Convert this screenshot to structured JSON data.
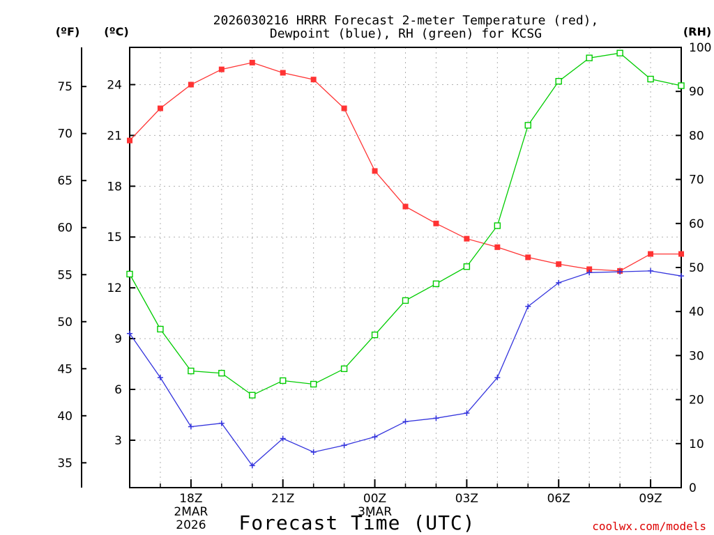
{
  "chart_data": {
    "type": "line",
    "title_line1": "2026030216 HRRR Forecast 2-meter Temperature (red),",
    "title_line2": "Dewpoint (blue), RH (green) for KCSG",
    "xlabel": "Forecast Time (UTC)",
    "credit": "coolwx.com/models",
    "units": {
      "fahrenheit": "(ºF)",
      "celsius": "(ºC)",
      "rh": "(RH)"
    },
    "x_hours": [
      16,
      17,
      18,
      19,
      20,
      21,
      22,
      23,
      24,
      25,
      26,
      27,
      28,
      29,
      30,
      31,
      32,
      33,
      34
    ],
    "x_ticks": [
      {
        "hour": 18,
        "lines": [
          "18Z",
          "2MAR",
          "2026"
        ]
      },
      {
        "hour": 21,
        "lines": [
          "21Z"
        ]
      },
      {
        "hour": 24,
        "lines": [
          "00Z",
          "3MAR"
        ]
      },
      {
        "hour": 27,
        "lines": [
          "03Z"
        ]
      },
      {
        "hour": 30,
        "lines": [
          "06Z"
        ]
      },
      {
        "hour": 33,
        "lines": [
          "09Z"
        ]
      }
    ],
    "xlim": [
      16,
      34
    ],
    "ylim_c": [
      0.2,
      26.2
    ],
    "ylim_rh": [
      0,
      100
    ],
    "c_ticks": [
      3,
      6,
      9,
      12,
      15,
      18,
      21,
      24
    ],
    "f_ticks": [
      35,
      40,
      45,
      50,
      55,
      60,
      65,
      70,
      75
    ],
    "rh_ticks": [
      0,
      10,
      20,
      30,
      40,
      50,
      60,
      70,
      80,
      90,
      100
    ],
    "series": [
      {
        "name": "Temperature",
        "unit": "C",
        "color": "#ff3333",
        "marker": "filled-square",
        "values": [
          20.7,
          22.6,
          24.0,
          24.9,
          25.3,
          24.7,
          24.3,
          22.6,
          18.9,
          16.8,
          15.8,
          14.9,
          14.4,
          13.8,
          13.4,
          13.1,
          13.0,
          14.0,
          14.0
        ]
      },
      {
        "name": "Dewpoint",
        "unit": "C",
        "color": "#3333dd",
        "marker": "plus",
        "values": [
          9.3,
          6.7,
          3.8,
          4.0,
          1.5,
          3.1,
          2.3,
          2.7,
          3.2,
          4.1,
          4.3,
          4.6,
          6.7,
          10.9,
          12.3,
          12.9,
          12.95,
          13.0,
          12.7
        ]
      },
      {
        "name": "RH",
        "unit": "%",
        "color": "#00cc00",
        "marker": "open-square",
        "values": [
          48.5,
          36.0,
          26.5,
          26.0,
          21.0,
          24.3,
          23.5,
          27.0,
          34.7,
          42.5,
          46.3,
          50.2,
          59.5,
          82.3,
          92.3,
          97.6,
          98.7,
          92.8,
          91.3
        ]
      }
    ]
  }
}
